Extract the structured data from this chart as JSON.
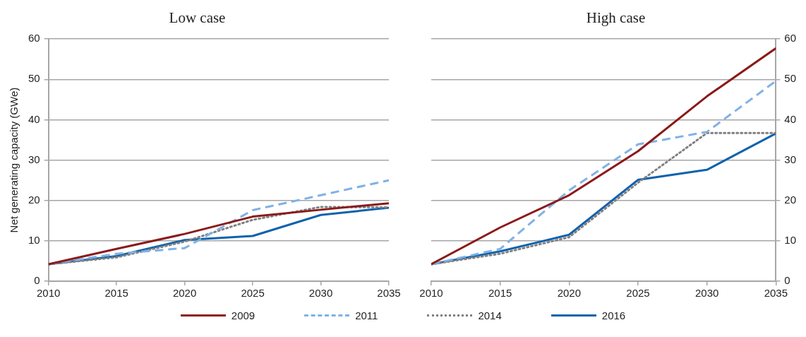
{
  "chart_data": [
    {
      "type": "line",
      "title": "Low case",
      "ylabel": "Net generating capacity (GWe)",
      "x": [
        2010,
        2015,
        2020,
        2025,
        2030,
        2035
      ],
      "xlim": [
        2010,
        2035
      ],
      "xticks": [
        2010,
        2015,
        2020,
        2025,
        2030,
        2035
      ],
      "ylim": [
        0,
        60
      ],
      "yticks": [
        0,
        10,
        20,
        30,
        40,
        50,
        60
      ],
      "grid": "y",
      "legend": "bottom",
      "marker": "none",
      "series": [
        {
          "name": "2009",
          "color": "#8b1a1a",
          "line_style": "solid",
          "values": [
            4.2,
            8.0,
            11.7,
            16.0,
            17.7,
            19.3
          ]
        },
        {
          "name": "2011",
          "color": "#7fb2e5",
          "line_style": "dashed",
          "values": [
            4.2,
            6.8,
            8.2,
            17.6,
            21.3,
            25.0
          ]
        },
        {
          "name": "2014",
          "color": "#808080",
          "line_style": "dotted",
          "values": [
            4.2,
            5.9,
            9.8,
            15.2,
            18.4,
            18.3
          ]
        },
        {
          "name": "2016",
          "color": "#0f62ad",
          "line_style": "solid",
          "values": [
            4.2,
            6.2,
            10.2,
            11.2,
            16.4,
            18.2
          ]
        }
      ]
    },
    {
      "type": "line",
      "title": "High case",
      "x": [
        2010,
        2015,
        2020,
        2025,
        2030,
        2035
      ],
      "xlim": [
        2010,
        2035
      ],
      "xticks": [
        2010,
        2015,
        2020,
        2025,
        2030,
        2035
      ],
      "ylim": [
        0,
        60
      ],
      "yticks": [
        0,
        10,
        20,
        30,
        40,
        50,
        60
      ],
      "grid": "y",
      "legend": "bottom",
      "marker": "none",
      "series": [
        {
          "name": "2009",
          "color": "#8b1a1a",
          "line_style": "solid",
          "values": [
            4.2,
            13.3,
            21.3,
            32.2,
            45.8,
            57.7
          ]
        },
        {
          "name": "2011",
          "color": "#7fb2e5",
          "line_style": "dashed",
          "values": [
            4.2,
            8.0,
            22.5,
            33.9,
            37.0,
            49.6
          ]
        },
        {
          "name": "2014",
          "color": "#808080",
          "line_style": "dotted",
          "values": [
            4.2,
            6.8,
            10.9,
            24.4,
            36.7,
            36.7
          ]
        },
        {
          "name": "2016",
          "color": "#0f62ad",
          "line_style": "solid",
          "values": [
            4.2,
            7.4,
            11.5,
            25.1,
            27.6,
            36.6
          ]
        }
      ]
    }
  ]
}
